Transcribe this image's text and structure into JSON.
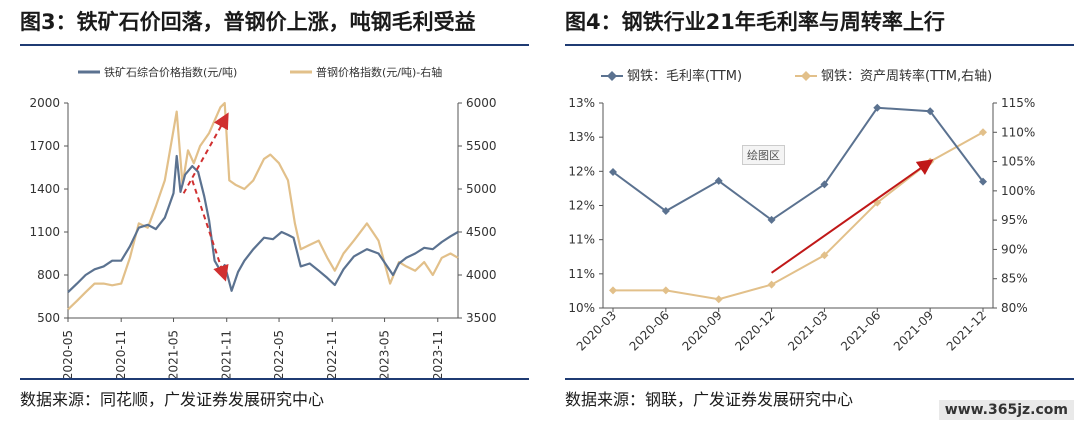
{
  "chart_data": [
    {
      "type": "line",
      "title": "图3：铁矿石价回落，普钢价上涨，吨钢毛利受益",
      "source": "数据来源：同花顺，广发证券发展研究中心",
      "x_ticks": [
        "2020-05",
        "2020-11",
        "2021-05",
        "2021-11",
        "2022-05",
        "2022-11",
        "2023-05",
        "2023-11"
      ],
      "y_left": {
        "min": 500,
        "max": 2000,
        "ticks": [
          "2000",
          "1700",
          "1400",
          "1100",
          "800",
          "500"
        ]
      },
      "y_right": {
        "min": 3500,
        "max": 6000,
        "ticks": [
          "6000",
          "5500",
          "5000",
          "4500",
          "4000",
          "3500"
        ]
      },
      "legend_position": "top",
      "colors": {
        "iron": "#5b7290",
        "steel": "#e2c08a",
        "arrow": "#d03030"
      },
      "series": [
        {
          "name": "铁矿石综合价格指数(元/吨)",
          "axis": "left",
          "points": [
            [
              "2020-05-01",
              680
            ],
            [
              "2020-06-01",
              740
            ],
            [
              "2020-07-01",
              800
            ],
            [
              "2020-08-01",
              840
            ],
            [
              "2020-09-01",
              860
            ],
            [
              "2020-10-01",
              900
            ],
            [
              "2020-11-01",
              900
            ],
            [
              "2020-12-01",
              1000
            ],
            [
              "2021-01-01",
              1130
            ],
            [
              "2021-02-01",
              1150
            ],
            [
              "2021-03-01",
              1120
            ],
            [
              "2021-04-01",
              1200
            ],
            [
              "2021-05-01",
              1370
            ],
            [
              "2021-05-12",
              1630
            ],
            [
              "2021-05-25",
              1380
            ],
            [
              "2021-06-10",
              1500
            ],
            [
              "2021-07-05",
              1560
            ],
            [
              "2021-07-25",
              1520
            ],
            [
              "2021-08-15",
              1350
            ],
            [
              "2021-09-01",
              1180
            ],
            [
              "2021-09-20",
              900
            ],
            [
              "2021-10-10",
              830
            ],
            [
              "2021-10-25",
              870
            ],
            [
              "2021-11-18",
              690
            ],
            [
              "2021-12-10",
              820
            ],
            [
              "2022-01-01",
              900
            ],
            [
              "2022-02-01",
              980
            ],
            [
              "2022-03-10",
              1060
            ],
            [
              "2022-04-10",
              1050
            ],
            [
              "2022-05-10",
              1100
            ],
            [
              "2022-06-01",
              1080
            ],
            [
              "2022-06-20",
              1060
            ],
            [
              "2022-07-15",
              860
            ],
            [
              "2022-08-15",
              880
            ],
            [
              "2022-09-15",
              830
            ],
            [
              "2022-10-15",
              780
            ],
            [
              "2022-11-10",
              730
            ],
            [
              "2022-12-10",
              840
            ],
            [
              "2023-01-15",
              930
            ],
            [
              "2023-03-01",
              980
            ],
            [
              "2023-04-10",
              950
            ],
            [
              "2023-05-10",
              860
            ],
            [
              "2023-05-30",
              800
            ],
            [
              "2023-06-20",
              880
            ],
            [
              "2023-07-15",
              920
            ],
            [
              "2023-08-15",
              950
            ],
            [
              "2023-09-15",
              990
            ],
            [
              "2023-10-15",
              980
            ],
            [
              "2023-11-15",
              1030
            ],
            [
              "2023-12-15",
              1070
            ],
            [
              "2024-01-10",
              1100
            ]
          ]
        },
        {
          "name": "普钢价格指数(元/吨)-右轴",
          "axis": "right",
          "points": [
            [
              "2020-05-01",
              3600
            ],
            [
              "2020-06-01",
              3700
            ],
            [
              "2020-07-01",
              3800
            ],
            [
              "2020-08-01",
              3900
            ],
            [
              "2020-09-01",
              3900
            ],
            [
              "2020-10-01",
              3880
            ],
            [
              "2020-11-01",
              3900
            ],
            [
              "2020-12-01",
              4200
            ],
            [
              "2021-01-01",
              4600
            ],
            [
              "2021-02-01",
              4550
            ],
            [
              "2021-03-01",
              4800
            ],
            [
              "2021-04-01",
              5100
            ],
            [
              "2021-05-12",
              5900
            ],
            [
              "2021-06-01",
              5050
            ],
            [
              "2021-06-20",
              5450
            ],
            [
              "2021-07-10",
              5300
            ],
            [
              "2021-08-01",
              5500
            ],
            [
              "2021-09-01",
              5650
            ],
            [
              "2021-10-10",
              5950
            ],
            [
              "2021-10-25",
              6000
            ],
            [
              "2021-11-10",
              5100
            ],
            [
              "2021-12-01",
              5050
            ],
            [
              "2022-01-01",
              5000
            ],
            [
              "2022-02-01",
              5100
            ],
            [
              "2022-03-10",
              5350
            ],
            [
              "2022-04-01",
              5400
            ],
            [
              "2022-05-01",
              5300
            ],
            [
              "2022-06-01",
              5100
            ],
            [
              "2022-06-25",
              4600
            ],
            [
              "2022-07-15",
              4300
            ],
            [
              "2022-08-15",
              4350
            ],
            [
              "2022-09-15",
              4400
            ],
            [
              "2022-10-15",
              4200
            ],
            [
              "2022-11-10",
              4050
            ],
            [
              "2022-12-10",
              4250
            ],
            [
              "2023-01-15",
              4400
            ],
            [
              "2023-03-01",
              4600
            ],
            [
              "2023-04-10",
              4400
            ],
            [
              "2023-05-20",
              3900
            ],
            [
              "2023-06-20",
              4150
            ],
            [
              "2023-07-15",
              4100
            ],
            [
              "2023-08-15",
              4050
            ],
            [
              "2023-09-15",
              4150
            ],
            [
              "2023-10-15",
              4000
            ],
            [
              "2023-11-15",
              4200
            ],
            [
              "2023-12-15",
              4250
            ],
            [
              "2024-01-10",
              4200
            ]
          ]
        }
      ],
      "arrows": [
        {
          "from": [
            "2021-06-05",
            4950
          ],
          "to": [
            "2021-11-01",
            5850
          ],
          "axis": "right"
        },
        {
          "from": [
            "2021-07-05",
            1460
          ],
          "to": [
            "2021-10-25",
            780
          ],
          "axis": "left"
        }
      ]
    },
    {
      "type": "line",
      "title": "图4：钢铁行业21年毛利率与周转率上行",
      "source": "数据来源：钢联，广发证券发展研究中心",
      "categories": [
        "2020-03",
        "2020-06",
        "2020-09",
        "2020-12",
        "2021-03",
        "2021-06",
        "2021-09",
        "2021-12"
      ],
      "y_left": {
        "min": 10.0,
        "max": 13.0,
        "ticks": [
          "13%",
          "13%",
          "12%",
          "12%",
          "11%",
          "11%",
          "10%"
        ]
      },
      "y_right": {
        "min": 80,
        "max": 115,
        "ticks": [
          "115%",
          "110%",
          "105%",
          "100%",
          "95%",
          "90%",
          "85%",
          "80%"
        ]
      },
      "legend_position": "top",
      "plot_area_label": "绘图区",
      "colors": {
        "margin": "#5b7290",
        "turnover": "#e2c08a",
        "arrow": "#c01818"
      },
      "series": [
        {
          "name": "钢铁：毛利率(TTM)",
          "axis": "left",
          "values": [
            11.99,
            11.42,
            11.86,
            11.29,
            11.81,
            12.93,
            12.88,
            11.85
          ]
        },
        {
          "name": "钢铁：资产周转率(TTM,右轴)",
          "axis": "right",
          "values": [
            83.0,
            83.0,
            81.5,
            84.0,
            89.0,
            98.0,
            105.0,
            110.0
          ]
        }
      ],
      "arrows": [
        {
          "from": [
            3.0,
            86
          ],
          "to": [
            6.0,
            105
          ],
          "axis": "right"
        }
      ]
    }
  ],
  "watermark": "www.365jz.com"
}
